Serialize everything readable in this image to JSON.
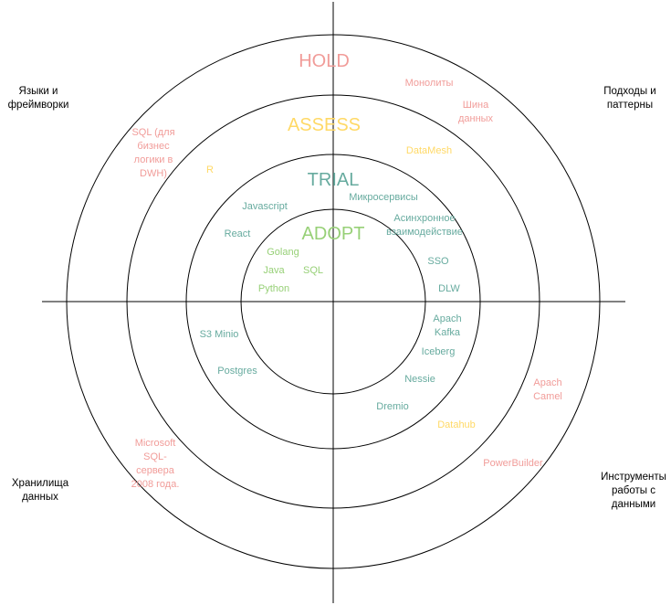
{
  "colors": {
    "hold": "#f19c99",
    "assess": "#ffd966",
    "trial": "#67ab9f",
    "adopt": "#97d077",
    "lines": "#000000"
  },
  "rings": {
    "adopt": "ADOPT",
    "trial": "TRIAL",
    "assess": "ASSESS",
    "hold": "HOLD"
  },
  "quadrants": {
    "top_left": [
      "Языки и",
      "фреймворки"
    ],
    "top_right": [
      "Подходы и",
      "паттерны"
    ],
    "bottom_left": [
      "Хранилища",
      "данных"
    ],
    "bottom_right": [
      "Инструменты",
      "работы с",
      "данными"
    ]
  },
  "items": {
    "sql_dwh": {
      "lines": [
        "SQL (для",
        "бизнес",
        "логики в",
        "DWH)"
      ],
      "ring": "hold"
    },
    "r": {
      "lines": [
        "R"
      ],
      "ring": "assess"
    },
    "javascript": {
      "lines": [
        "Javascript"
      ],
      "ring": "trial"
    },
    "react": {
      "lines": [
        "React"
      ],
      "ring": "trial"
    },
    "golang": {
      "lines": [
        "Golang"
      ],
      "ring": "adopt"
    },
    "java": {
      "lines": [
        "Java"
      ],
      "ring": "adopt"
    },
    "sql": {
      "lines": [
        "SQL"
      ],
      "ring": "adopt"
    },
    "python": {
      "lines": [
        "Python"
      ],
      "ring": "adopt"
    },
    "monoliths": {
      "lines": [
        "Монолиты"
      ],
      "ring": "hold"
    },
    "data_bus": {
      "lines": [
        "Шина",
        "данных"
      ],
      "ring": "hold"
    },
    "datamesh": {
      "lines": [
        "DataMesh"
      ],
      "ring": "assess"
    },
    "microservices": {
      "lines": [
        "Микросервисы"
      ],
      "ring": "trial"
    },
    "async": {
      "lines": [
        "Асинхронное",
        "взаимодействие"
      ],
      "ring": "trial"
    },
    "sso": {
      "lines": [
        "SSO"
      ],
      "ring": "trial"
    },
    "dlw": {
      "lines": [
        "DLW"
      ],
      "ring": "trial"
    },
    "s3_minio": {
      "lines": [
        "S3 Minio"
      ],
      "ring": "trial"
    },
    "postgres": {
      "lines": [
        "Postgres"
      ],
      "ring": "trial"
    },
    "mssql": {
      "lines": [
        "Microsoft",
        "SQL-",
        "сервера",
        "2008 года."
      ],
      "ring": "hold"
    },
    "kafka": {
      "lines": [
        "Apach",
        "Kafka"
      ],
      "ring": "trial"
    },
    "iceberg": {
      "lines": [
        "Iceberg"
      ],
      "ring": "trial"
    },
    "nessie": {
      "lines": [
        "Nessie"
      ],
      "ring": "trial"
    },
    "dremio": {
      "lines": [
        "Dremio"
      ],
      "ring": "trial"
    },
    "datahub": {
      "lines": [
        "Datahub"
      ],
      "ring": "assess"
    },
    "camel": {
      "lines": [
        "Apach",
        "Camel"
      ],
      "ring": "hold"
    },
    "powerbuilder": {
      "lines": [
        "PowerBuilder"
      ],
      "ring": "hold"
    }
  }
}
